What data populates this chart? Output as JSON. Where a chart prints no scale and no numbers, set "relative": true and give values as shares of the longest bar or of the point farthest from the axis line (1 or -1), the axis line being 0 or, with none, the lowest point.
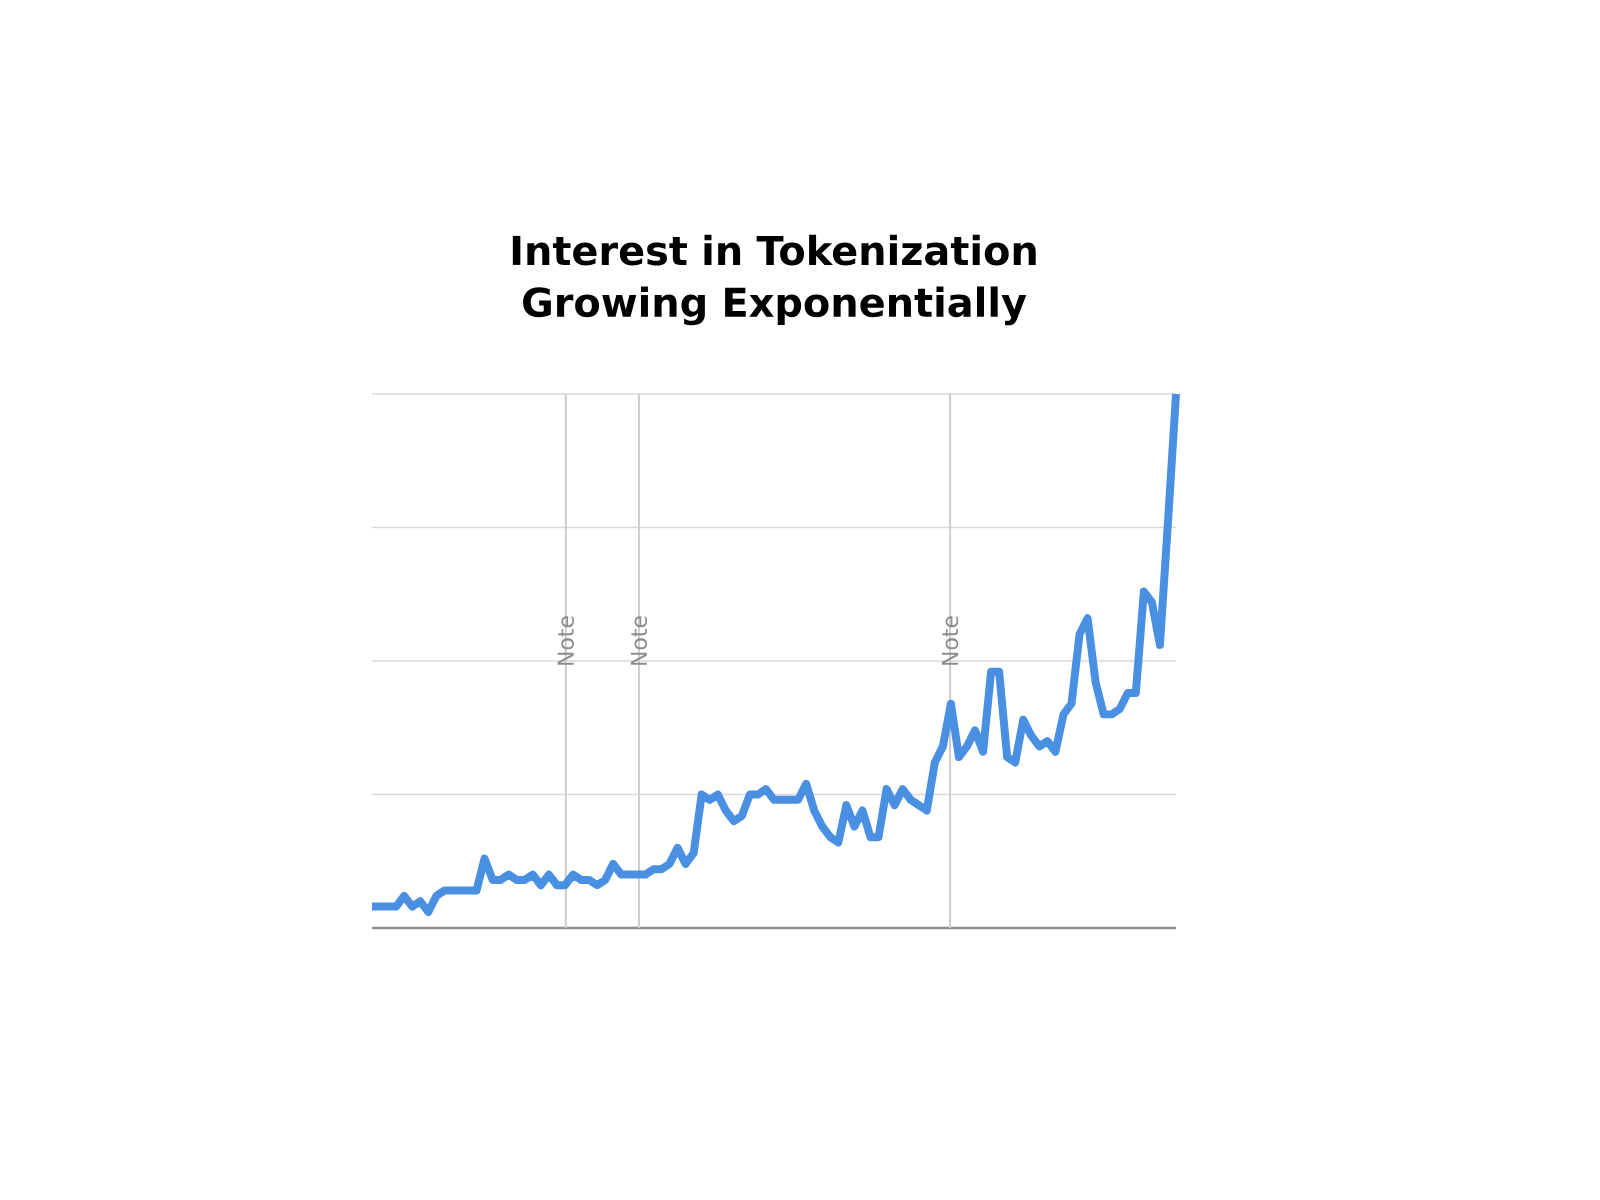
{
  "chart_data": {
    "type": "line",
    "title": "Interest in Tokenization Growing Exponentially",
    "relative": true,
    "grid": "y",
    "marker": "none",
    "line_style": "solid",
    "categories": [
      null,
      null,
      null,
      null,
      null,
      null,
      null,
      null,
      null,
      null,
      null,
      null,
      null,
      null,
      null,
      null,
      null,
      null,
      null,
      null,
      null,
      null,
      null,
      null,
      null,
      null,
      null,
      null,
      null,
      null,
      null,
      null,
      null,
      null,
      null,
      null,
      null,
      null,
      null,
      null,
      null,
      null,
      null,
      null,
      null,
      null,
      null,
      null,
      null,
      null,
      null,
      null,
      null,
      null,
      null,
      null,
      null,
      null,
      null,
      null,
      null,
      null,
      null,
      null,
      null,
      null,
      null,
      null,
      null,
      null,
      null,
      null,
      null,
      null,
      null,
      null,
      null,
      null,
      null,
      null,
      null,
      null,
      null,
      null,
      null,
      null,
      null,
      null,
      null,
      null,
      null,
      null,
      null,
      null,
      null,
      null,
      null,
      null,
      null,
      null,
      null
    ],
    "series": [
      {
        "color": "#4a90e2",
        "values": [
          0.04,
          0.04,
          0.04,
          0.04,
          0.06,
          0.04,
          0.05,
          0.03,
          0.06,
          0.07,
          0.07,
          0.07,
          0.07,
          0.07,
          0.13,
          0.09,
          0.09,
          0.1,
          0.09,
          0.09,
          0.1,
          0.08,
          0.1,
          0.08,
          0.08,
          0.1,
          0.09,
          0.09,
          0.08,
          0.09,
          0.12,
          0.1,
          0.1,
          0.1,
          0.1,
          0.11,
          0.11,
          0.12,
          0.15,
          0.12,
          0.14,
          0.25,
          0.24,
          0.25,
          0.22,
          0.2,
          0.21,
          0.25,
          0.25,
          0.26,
          0.24,
          0.24,
          0.24,
          0.24,
          0.27,
          0.22,
          0.19,
          0.17,
          0.16,
          0.23,
          0.19,
          0.22,
          0.17,
          0.17,
          0.26,
          0.23,
          0.26,
          0.24,
          0.23,
          0.22,
          0.31,
          0.34,
          0.42,
          0.32,
          0.34,
          0.37,
          0.33,
          0.48,
          0.48,
          0.32,
          0.31,
          0.39,
          0.36,
          0.34,
          0.35,
          0.33,
          0.4,
          0.42,
          0.55,
          0.58,
          0.46,
          0.4,
          0.4,
          0.41,
          0.44,
          0.44,
          0.63,
          0.61,
          0.53,
          0.76,
          1
        ]
      }
    ],
    "annotations": [
      "Note",
      "Note",
      "Note"
    ]
  }
}
